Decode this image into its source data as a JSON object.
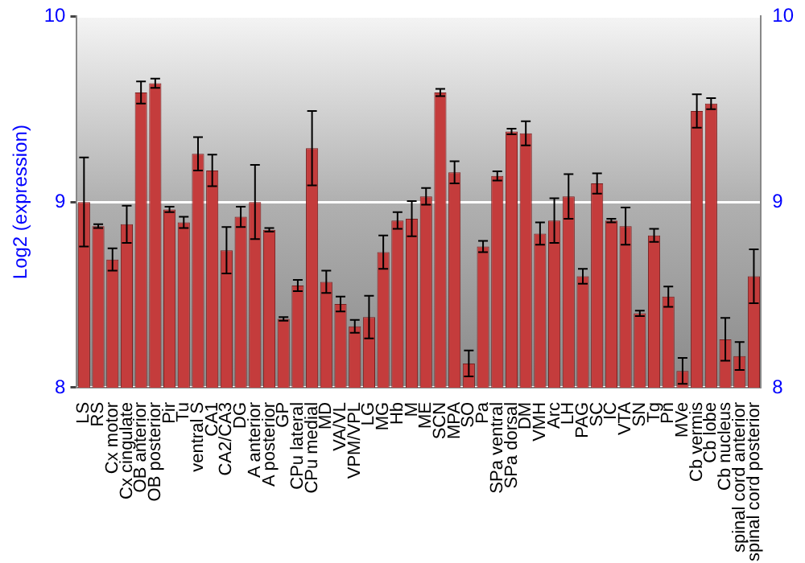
{
  "chart_data": {
    "type": "bar",
    "ylabel": "Log2 (expression)",
    "categories": [
      "LS",
      "RS",
      "Cx motor",
      "Cx cingulate",
      "OB anterior",
      "OB posterior",
      "Pir",
      "Tu",
      "ventral S",
      "CA1",
      "CA2/CA3",
      "DG",
      "A anterior",
      "A posterior",
      "GP",
      "CPu lateral",
      "CPu medial",
      "MD",
      "VA/VL",
      "VPM/VPL",
      "LG",
      "MG",
      "Hb",
      "M",
      "ME",
      "SCN",
      "MPA",
      "SO",
      "Pa",
      "SPa ventral",
      "SPa dorsal",
      "DM",
      "VMH",
      "Arc",
      "LH",
      "PAG",
      "SC",
      "IC",
      "VTA",
      "SN",
      "Tg",
      "Pn",
      "MVe",
      "Cb vermis",
      "Cb lobe",
      "Cb nucleus",
      "spinal cord anterior",
      "spinal cord posterior"
    ],
    "values": [
      9.0,
      8.87,
      8.69,
      8.88,
      9.59,
      9.64,
      8.96,
      8.89,
      9.26,
      9.17,
      8.74,
      8.92,
      9.0,
      8.85,
      8.37,
      8.55,
      9.29,
      8.57,
      8.45,
      8.33,
      8.38,
      8.73,
      8.9,
      8.91,
      9.03,
      9.59,
      9.16,
      8.13,
      8.76,
      9.14,
      9.38,
      9.37,
      8.83,
      8.9,
      9.03,
      8.6,
      9.1,
      8.9,
      8.87,
      8.4,
      8.82,
      8.49,
      8.09,
      9.49,
      9.53,
      8.26,
      8.17,
      8.6
    ],
    "errors": [
      0.24,
      0.01,
      0.06,
      0.1,
      0.06,
      0.025,
      0.015,
      0.03,
      0.09,
      0.085,
      0.125,
      0.055,
      0.2,
      0.01,
      0.01,
      0.03,
      0.2,
      0.06,
      0.04,
      0.035,
      0.115,
      0.09,
      0.045,
      0.095,
      0.045,
      0.02,
      0.06,
      0.07,
      0.03,
      0.025,
      0.015,
      0.065,
      0.06,
      0.12,
      0.12,
      0.04,
      0.055,
      0.01,
      0.1,
      0.015,
      0.035,
      0.055,
      0.07,
      0.09,
      0.03,
      0.115,
      0.075,
      0.145
    ],
    "color": "#c43c3c",
    "ylim": [
      8,
      10
    ],
    "yticks": [
      8,
      9,
      10
    ],
    "y2lim": [
      8,
      10
    ],
    "y2ticks": [
      8,
      9,
      10
    ],
    "grid": "y"
  }
}
